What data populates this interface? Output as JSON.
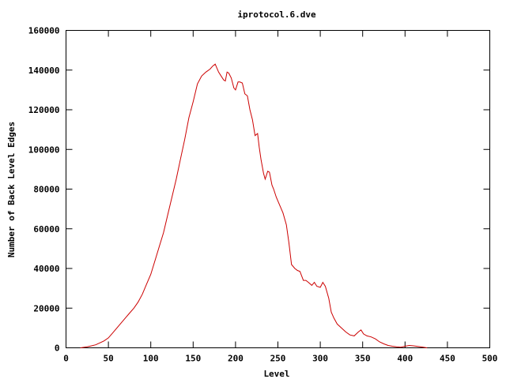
{
  "chart_data": {
    "type": "line",
    "title": "iprotocol.6.dve",
    "xlabel": "Level",
    "ylabel": "Number of Back Level Edges",
    "xlim": [
      0,
      500
    ],
    "ylim": [
      0,
      160000
    ],
    "x_ticks": [
      0,
      50,
      100,
      150,
      200,
      250,
      300,
      350,
      400,
      450,
      500
    ],
    "y_ticks": [
      0,
      20000,
      40000,
      60000,
      80000,
      100000,
      120000,
      140000,
      160000
    ],
    "grid": false,
    "line_color": "#cc0000",
    "series": [
      {
        "x": [
          17,
          25,
          30,
          35,
          40,
          45,
          50,
          55,
          60,
          65,
          70,
          75,
          80,
          85,
          90,
          95,
          100,
          105,
          110,
          115,
          120,
          125,
          130,
          135,
          140,
          145,
          150,
          155,
          160,
          165,
          170,
          173,
          176,
          178,
          180,
          183,
          186,
          188,
          190,
          192,
          195,
          198,
          200,
          203,
          205,
          208,
          211,
          214,
          217,
          220,
          223,
          226,
          228,
          230,
          233,
          235,
          238,
          240,
          243,
          245,
          248,
          250,
          253,
          256,
          260,
          263,
          266,
          270,
          273,
          276,
          280,
          283,
          286,
          290,
          293,
          296,
          300,
          303,
          306,
          310,
          313,
          316,
          320,
          325,
          330,
          335,
          340,
          345,
          348,
          351,
          355,
          360,
          365,
          370,
          375,
          380,
          385,
          390,
          395,
          400,
          405,
          410,
          415,
          420,
          426
        ],
        "y": [
          0,
          500,
          1000,
          1500,
          2500,
          3500,
          5000,
          7500,
          10000,
          12500,
          15000,
          17500,
          20000,
          23000,
          27000,
          32000,
          37000,
          44000,
          51000,
          58000,
          67000,
          76000,
          85000,
          95000,
          105000,
          116000,
          124000,
          133000,
          137000,
          139000,
          140500,
          142000,
          143000,
          141000,
          139000,
          137000,
          135000,
          134500,
          139000,
          138500,
          136000,
          131000,
          130000,
          134000,
          134000,
          133500,
          128000,
          127000,
          120000,
          115000,
          107000,
          108000,
          101000,
          95000,
          88000,
          85000,
          89000,
          88500,
          82000,
          80000,
          76000,
          74000,
          71000,
          68000,
          62000,
          53000,
          42000,
          40000,
          39000,
          38500,
          34000,
          34000,
          33000,
          31500,
          33000,
          31000,
          30500,
          33000,
          31000,
          25000,
          18000,
          15000,
          12000,
          10000,
          8000,
          6500,
          6000,
          8000,
          9000,
          7000,
          6000,
          5500,
          4500,
          3000,
          2000,
          1200,
          800,
          500,
          300,
          800,
          1200,
          1000,
          700,
          400,
          0
        ]
      }
    ]
  }
}
